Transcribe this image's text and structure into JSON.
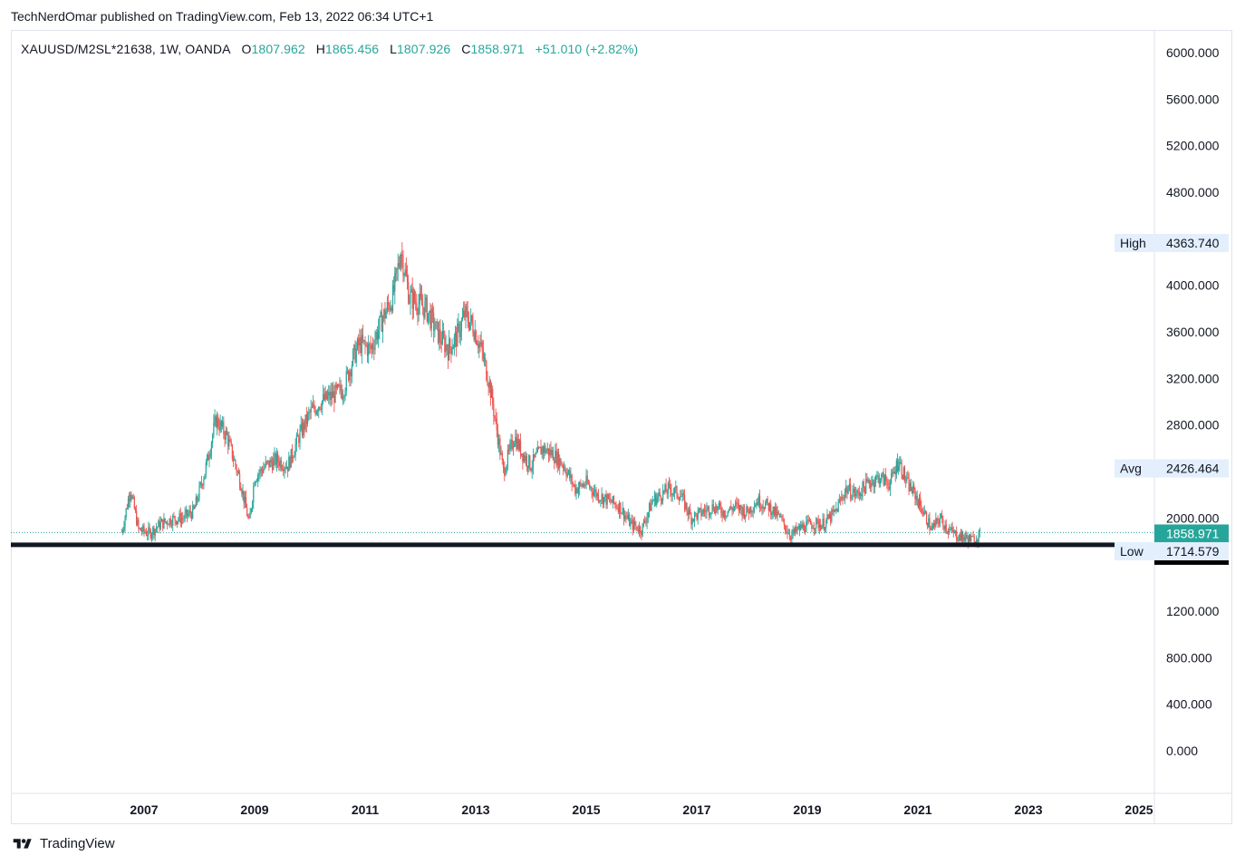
{
  "publisher_line": "TechNerdOmar published on TradingView.com, Feb 13, 2022 06:34 UTC+1",
  "legend": {
    "symbol": "XAUUSD/M2SL*21638, 1W, OANDA",
    "o_label": "O",
    "o_value": "1807.962",
    "h_label": "H",
    "h_value": "1865.456",
    "l_label": "L",
    "l_value": "1807.926",
    "c_label": "C",
    "c_value": "1858.971",
    "change": "+51.010 (+2.82%)"
  },
  "footer": {
    "brand": "TradingView"
  },
  "colors": {
    "up": "#26a69a",
    "down": "#ef5350",
    "last_price_bg": "#26a69a",
    "level_line": "#131722",
    "stat_badge_bg": "#e3effd",
    "grid_border": "#e0e3eb"
  },
  "chart_data": {
    "type": "candlestick",
    "timeframe": "1W",
    "x_axis": {
      "ticks": [
        "2007",
        "2009",
        "2011",
        "2013",
        "2015",
        "2017",
        "2019",
        "2021",
        "2023",
        "2025"
      ],
      "range": [
        2005.0,
        2025.6
      ]
    },
    "y_axis": {
      "ticks": [
        "6000.000",
        "5600.000",
        "5200.000",
        "4800.000",
        "4000.000",
        "3600.000",
        "3200.000",
        "2800.000",
        "2000.000",
        "1200.000",
        "800.000",
        "400.000",
        "0.000"
      ],
      "range": [
        -300,
        6200
      ]
    },
    "approx_close_series": [
      [
        2006.6,
        1880
      ],
      [
        2006.75,
        2250
      ],
      [
        2006.9,
        1900
      ],
      [
        2007.1,
        1870
      ],
      [
        2007.3,
        1950
      ],
      [
        2007.5,
        1990
      ],
      [
        2007.7,
        2000
      ],
      [
        2007.9,
        2060
      ],
      [
        2008.1,
        2400
      ],
      [
        2008.3,
        2850
      ],
      [
        2008.5,
        2700
      ],
      [
        2008.75,
        2300
      ],
      [
        2008.9,
        1950
      ],
      [
        2009.0,
        2350
      ],
      [
        2009.2,
        2450
      ],
      [
        2009.4,
        2500
      ],
      [
        2009.6,
        2450
      ],
      [
        2009.8,
        2700
      ],
      [
        2010.0,
        2900
      ],
      [
        2010.2,
        3000
      ],
      [
        2010.4,
        3050
      ],
      [
        2010.6,
        3100
      ],
      [
        2010.8,
        3400
      ],
      [
        2010.9,
        3500
      ],
      [
        2011.1,
        3450
      ],
      [
        2011.3,
        3700
      ],
      [
        2011.5,
        3900
      ],
      [
        2011.65,
        4300
      ],
      [
        2011.8,
        3900
      ],
      [
        2011.95,
        3850
      ],
      [
        2012.1,
        3800
      ],
      [
        2012.3,
        3600
      ],
      [
        2012.5,
        3450
      ],
      [
        2012.65,
        3550
      ],
      [
        2012.8,
        3750
      ],
      [
        2012.95,
        3650
      ],
      [
        2013.1,
        3450
      ],
      [
        2013.25,
        3150
      ],
      [
        2013.4,
        2700
      ],
      [
        2013.5,
        2400
      ],
      [
        2013.7,
        2700
      ],
      [
        2013.85,
        2550
      ],
      [
        2014.0,
        2450
      ],
      [
        2014.2,
        2600
      ],
      [
        2014.4,
        2550
      ],
      [
        2014.6,
        2450
      ],
      [
        2014.8,
        2250
      ],
      [
        2015.0,
        2300
      ],
      [
        2015.2,
        2200
      ],
      [
        2015.4,
        2150
      ],
      [
        2015.6,
        2100
      ],
      [
        2015.8,
        1950
      ],
      [
        2016.0,
        1900
      ],
      [
        2016.2,
        2150
      ],
      [
        2016.5,
        2250
      ],
      [
        2016.7,
        2200
      ],
      [
        2016.9,
        2000
      ],
      [
        2017.1,
        2050
      ],
      [
        2017.3,
        2100
      ],
      [
        2017.5,
        2050
      ],
      [
        2017.7,
        2100
      ],
      [
        2017.9,
        2050
      ],
      [
        2018.1,
        2150
      ],
      [
        2018.3,
        2100
      ],
      [
        2018.5,
        2000
      ],
      [
        2018.7,
        1850
      ],
      [
        2018.9,
        1920
      ],
      [
        2019.1,
        1950
      ],
      [
        2019.3,
        1950
      ],
      [
        2019.5,
        2050
      ],
      [
        2019.7,
        2250
      ],
      [
        2019.9,
        2200
      ],
      [
        2020.1,
        2300
      ],
      [
        2020.3,
        2350
      ],
      [
        2020.5,
        2300
      ],
      [
        2020.65,
        2500
      ],
      [
        2020.8,
        2300
      ],
      [
        2020.95,
        2200
      ],
      [
        2021.1,
        2050
      ],
      [
        2021.25,
        1900
      ],
      [
        2021.4,
        2000
      ],
      [
        2021.55,
        1900
      ],
      [
        2021.7,
        1850
      ],
      [
        2021.85,
        1830
      ],
      [
        2022.0,
        1810
      ],
      [
        2022.12,
        1859
      ]
    ],
    "markers": [
      {
        "label": "High",
        "value": "4363.740"
      },
      {
        "label": "Avg",
        "value": "2426.464"
      },
      {
        "label": "Low",
        "value": "1714.579"
      }
    ],
    "last_price": "1858.971",
    "horizontal_level": "1792.739"
  }
}
